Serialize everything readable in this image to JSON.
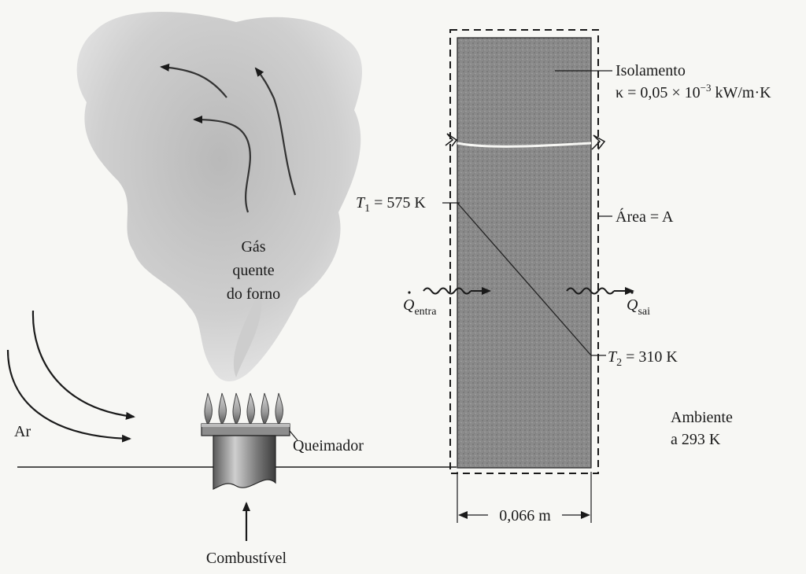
{
  "labels": {
    "isolamento": "Isolamento",
    "kappa_prefix": "κ = 0,05 × 10",
    "kappa_exp": "−3",
    "kappa_units": " kW/m·K",
    "t1_sym": "T",
    "t1_sub": "1",
    "t1_val": " = 575 K",
    "area": "Área = A",
    "q_sym": "Q",
    "q_in_sub": "entra",
    "q_out_sub": "sai",
    "t2_sym": "T",
    "t2_sub": "2",
    "t2_val": " = 310 K",
    "ambient_line1": "Ambiente",
    "ambient_line2": "a 293 K",
    "thickness": "0,066 m",
    "gas_line1": "Gás",
    "gas_line2": "quente",
    "gas_line3": "do forno",
    "air": "Ar",
    "burner": "Queimador",
    "fuel": "Combustível"
  }
}
